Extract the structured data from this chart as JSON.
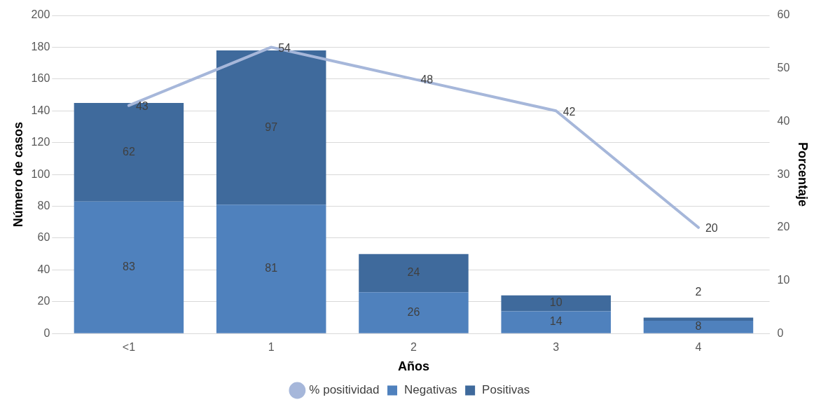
{
  "chart_data": {
    "type": "bar",
    "stacked": true,
    "xlabel": "Años",
    "ylabel": "Número de casos",
    "y2label": "Porcentaje",
    "categories": [
      "<1",
      "1",
      "2",
      "3",
      "4"
    ],
    "series": [
      {
        "name": "Negativas",
        "color": "#4f81bd",
        "values": [
          83,
          81,
          26,
          14,
          8
        ]
      },
      {
        "name": "Positivas",
        "color": "#3f6a9c",
        "values": [
          62,
          97,
          24,
          10,
          2
        ]
      },
      {
        "name": "% positividad",
        "type": "line",
        "axis": "y2",
        "color": "#a6b7da",
        "values": [
          43,
          54,
          48,
          42,
          20
        ]
      }
    ],
    "ylim": [
      0,
      200
    ],
    "yticks": [
      0,
      20,
      40,
      60,
      80,
      100,
      120,
      140,
      160,
      180,
      200
    ],
    "y2lim": [
      0,
      60
    ],
    "y2ticks": [
      0,
      10,
      20,
      30,
      40,
      50,
      60
    ],
    "grid": "y",
    "legend": "bottom",
    "data_labels": true,
    "marker": "none",
    "line_style": "solid"
  }
}
